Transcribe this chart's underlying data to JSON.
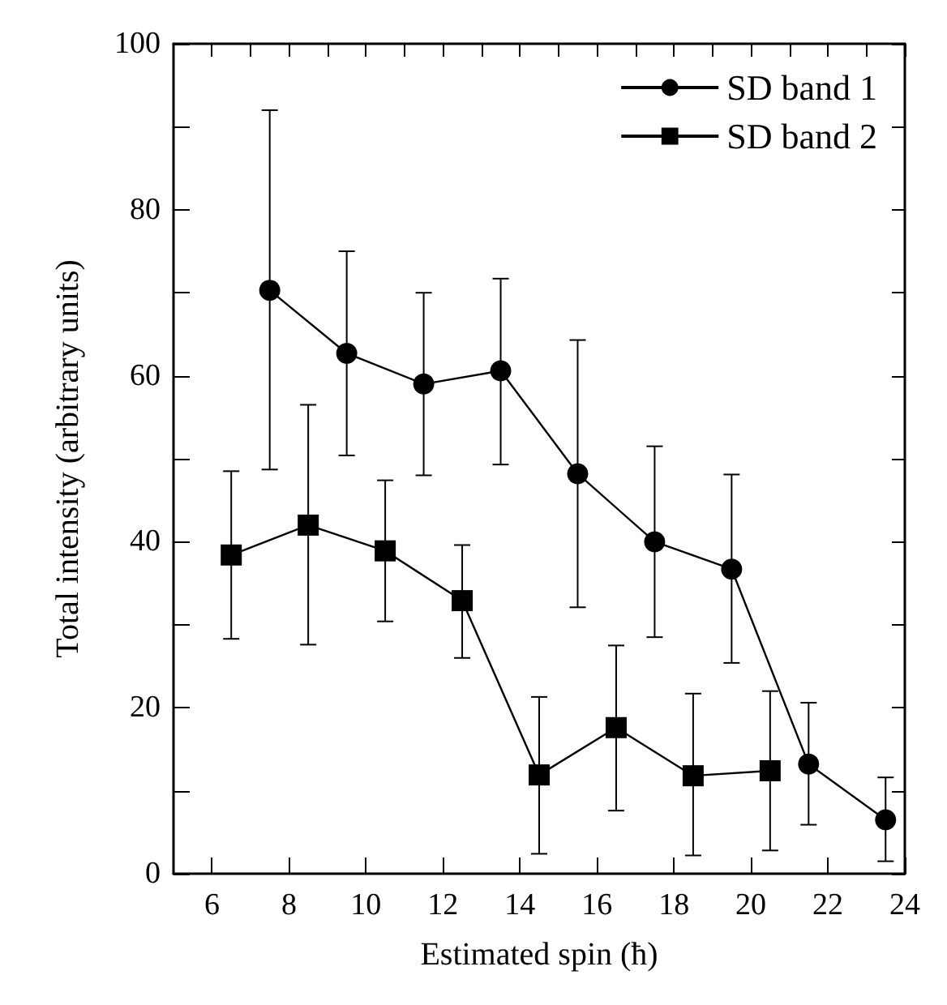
{
  "chart_data": {
    "type": "line",
    "xlabel": "Estimated spin (ħ)",
    "ylabel": "Total intensity (arbitrary units)",
    "xlim": [
      5,
      24
    ],
    "xticks": [
      6,
      8,
      10,
      12,
      14,
      16,
      18,
      20,
      22,
      24
    ],
    "ylim": [
      0,
      100
    ],
    "yticks": [
      0,
      20,
      40,
      60,
      80,
      100
    ],
    "grid": false,
    "legend": "top right",
    "series": [
      {
        "name": "SD band 1",
        "color": "#000000",
        "marker": "circle",
        "x": [
          7.5,
          9.5,
          11.5,
          13.5,
          15.5,
          17.5,
          19.5,
          21.5,
          23.5
        ],
        "values": [
          70.3,
          62.7,
          59.0,
          60.6,
          48.2,
          40.0,
          36.7,
          13.2,
          6.5
        ],
        "errors": [
          [
            48.7,
            92.0
          ],
          [
            50.4,
            75.0
          ],
          [
            48.0,
            70.0
          ],
          [
            49.3,
            71.7
          ],
          [
            32.1,
            64.3
          ],
          [
            28.5,
            51.5
          ],
          [
            25.4,
            48.1
          ],
          [
            5.9,
            20.6
          ],
          [
            1.5,
            11.6
          ]
        ]
      },
      {
        "name": "SD band 2",
        "color": "#000000",
        "marker": "square",
        "x": [
          6.5,
          8.5,
          10.5,
          12.5,
          14.5,
          16.5,
          18.5,
          20.5
        ],
        "values": [
          38.4,
          42.0,
          38.9,
          32.9,
          11.9,
          17.6,
          11.8,
          12.4
        ],
        "errors": [
          [
            28.3,
            48.5
          ],
          [
            27.6,
            56.5
          ],
          [
            30.4,
            47.4
          ],
          [
            26.0,
            39.6
          ],
          [
            2.4,
            21.3
          ],
          [
            7.6,
            27.5
          ],
          [
            2.2,
            21.7
          ],
          [
            2.8,
            22.0
          ]
        ]
      }
    ]
  }
}
